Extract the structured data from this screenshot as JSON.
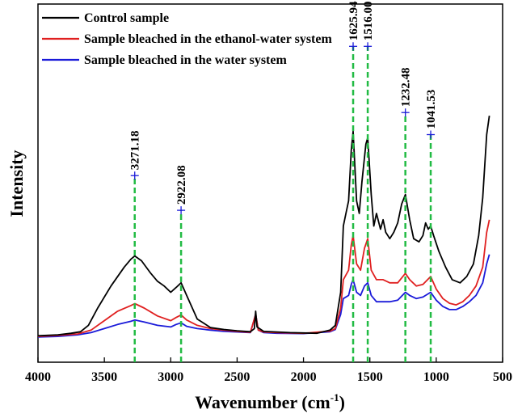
{
  "chart_data": {
    "type": "line",
    "title": "",
    "xlabel": "Wavenumber (cm",
    "xlabel_sup": "-1",
    "xlabel_close": ")",
    "ylabel": "Intensity",
    "xlim": [
      4000,
      500
    ],
    "x_reversed": true,
    "ylim": [
      0,
      100
    ],
    "y_ticks_shown": false,
    "grid": false,
    "legend_placement": "top-left",
    "x_ticks": [
      4000,
      3500,
      3000,
      2500,
      2000,
      1500,
      1000,
      500
    ],
    "x_tick_labels": [
      "4000",
      "3500",
      "3000",
      "2500",
      "2000",
      "1500",
      "1000",
      "500"
    ],
    "series": [
      {
        "name": "Control sample",
        "color": "#000000",
        "points": [
          [
            4000,
            1.2
          ],
          [
            3850,
            1.5
          ],
          [
            3750,
            2.0
          ],
          [
            3680,
            2.5
          ],
          [
            3620,
            4.5
          ],
          [
            3550,
            10
          ],
          [
            3450,
            17
          ],
          [
            3350,
            23
          ],
          [
            3300,
            25.5
          ],
          [
            3271,
            26.5
          ],
          [
            3220,
            25
          ],
          [
            3150,
            21
          ],
          [
            3100,
            18.5
          ],
          [
            3050,
            17
          ],
          [
            3000,
            15
          ],
          [
            2960,
            16.5
          ],
          [
            2922,
            18
          ],
          [
            2880,
            14
          ],
          [
            2800,
            6.5
          ],
          [
            2700,
            3.8
          ],
          [
            2600,
            3.2
          ],
          [
            2500,
            2.8
          ],
          [
            2400,
            2.5
          ],
          [
            2370,
            3.5
          ],
          [
            2360,
            9
          ],
          [
            2350,
            4
          ],
          [
            2300,
            2.6
          ],
          [
            2200,
            2.4
          ],
          [
            2100,
            2.2
          ],
          [
            2000,
            2.1
          ],
          [
            1900,
            2.0
          ],
          [
            1800,
            3.0
          ],
          [
            1760,
            4.5
          ],
          [
            1720,
            15
          ],
          [
            1700,
            36
          ],
          [
            1680,
            40
          ],
          [
            1660,
            44
          ],
          [
            1640,
            60
          ],
          [
            1626,
            66
          ],
          [
            1600,
            44
          ],
          [
            1580,
            40
          ],
          [
            1560,
            50
          ],
          [
            1530,
            62
          ],
          [
            1516,
            64
          ],
          [
            1490,
            46
          ],
          [
            1470,
            36
          ],
          [
            1450,
            40
          ],
          [
            1420,
            35
          ],
          [
            1400,
            38
          ],
          [
            1380,
            34
          ],
          [
            1350,
            32
          ],
          [
            1320,
            34
          ],
          [
            1290,
            37
          ],
          [
            1260,
            43
          ],
          [
            1232,
            46
          ],
          [
            1200,
            38
          ],
          [
            1170,
            32
          ],
          [
            1130,
            31
          ],
          [
            1100,
            33
          ],
          [
            1080,
            37
          ],
          [
            1060,
            35
          ],
          [
            1042,
            36
          ],
          [
            1020,
            33
          ],
          [
            980,
            28
          ],
          [
            930,
            23
          ],
          [
            880,
            19
          ],
          [
            820,
            18
          ],
          [
            770,
            20
          ],
          [
            720,
            24
          ],
          [
            680,
            33
          ],
          [
            650,
            45
          ],
          [
            620,
            65
          ],
          [
            600,
            71
          ]
        ]
      },
      {
        "name": "Sample bleached in the ethanol-water system",
        "color": "#e02020",
        "points": [
          [
            4000,
            1.0
          ],
          [
            3850,
            1.3
          ],
          [
            3700,
            1.8
          ],
          [
            3600,
            3.0
          ],
          [
            3500,
            6
          ],
          [
            3400,
            9
          ],
          [
            3300,
            10.8
          ],
          [
            3271,
            11.4
          ],
          [
            3200,
            10
          ],
          [
            3100,
            7.5
          ],
          [
            3000,
            6
          ],
          [
            2960,
            7
          ],
          [
            2922,
            7.8
          ],
          [
            2880,
            6.2
          ],
          [
            2800,
            4.5
          ],
          [
            2700,
            3.5
          ],
          [
            2600,
            3.0
          ],
          [
            2500,
            2.6
          ],
          [
            2400,
            2.3
          ],
          [
            2360,
            8
          ],
          [
            2340,
            3
          ],
          [
            2300,
            2.4
          ],
          [
            2200,
            2.2
          ],
          [
            2000,
            2.0
          ],
          [
            1800,
            2.7
          ],
          [
            1760,
            3.5
          ],
          [
            1720,
            10
          ],
          [
            1700,
            19
          ],
          [
            1660,
            22
          ],
          [
            1640,
            30
          ],
          [
            1626,
            33
          ],
          [
            1600,
            24
          ],
          [
            1570,
            22
          ],
          [
            1540,
            29
          ],
          [
            1516,
            32
          ],
          [
            1490,
            22
          ],
          [
            1450,
            19
          ],
          [
            1400,
            19
          ],
          [
            1350,
            18
          ],
          [
            1290,
            18
          ],
          [
            1232,
            21
          ],
          [
            1200,
            19
          ],
          [
            1150,
            17
          ],
          [
            1100,
            17.5
          ],
          [
            1042,
            20
          ],
          [
            1000,
            16
          ],
          [
            950,
            13
          ],
          [
            900,
            11.5
          ],
          [
            850,
            11
          ],
          [
            800,
            12
          ],
          [
            750,
            14
          ],
          [
            700,
            17
          ],
          [
            650,
            23
          ],
          [
            620,
            34
          ],
          [
            600,
            38
          ]
        ]
      },
      {
        "name": "Sample bleached in the water system",
        "color": "#1a1ad9",
        "points": [
          [
            4000,
            0.8
          ],
          [
            3850,
            1.0
          ],
          [
            3700,
            1.5
          ],
          [
            3600,
            2.2
          ],
          [
            3500,
            3.5
          ],
          [
            3400,
            4.8
          ],
          [
            3300,
            5.8
          ],
          [
            3271,
            6.2
          ],
          [
            3200,
            5.6
          ],
          [
            3100,
            4.5
          ],
          [
            3000,
            4.0
          ],
          [
            2960,
            4.8
          ],
          [
            2922,
            5.3
          ],
          [
            2880,
            4.2
          ],
          [
            2800,
            3.5
          ],
          [
            2700,
            3.0
          ],
          [
            2600,
            2.6
          ],
          [
            2500,
            2.4
          ],
          [
            2400,
            2.2
          ],
          [
            2360,
            8
          ],
          [
            2340,
            3
          ],
          [
            2300,
            2.2
          ],
          [
            2200,
            2.0
          ],
          [
            2000,
            1.9
          ],
          [
            1800,
            2.5
          ],
          [
            1760,
            3.2
          ],
          [
            1720,
            8
          ],
          [
            1700,
            13
          ],
          [
            1660,
            14
          ],
          [
            1640,
            17.5
          ],
          [
            1626,
            19
          ],
          [
            1600,
            15
          ],
          [
            1570,
            14
          ],
          [
            1540,
            17
          ],
          [
            1516,
            18
          ],
          [
            1490,
            14
          ],
          [
            1450,
            12
          ],
          [
            1400,
            12
          ],
          [
            1350,
            12
          ],
          [
            1290,
            12.5
          ],
          [
            1232,
            15
          ],
          [
            1200,
            14
          ],
          [
            1150,
            13
          ],
          [
            1100,
            13.5
          ],
          [
            1042,
            15
          ],
          [
            1000,
            12.5
          ],
          [
            950,
            10.5
          ],
          [
            900,
            9.5
          ],
          [
            850,
            9.5
          ],
          [
            800,
            10.5
          ],
          [
            750,
            12
          ],
          [
            700,
            14
          ],
          [
            650,
            18
          ],
          [
            620,
            24
          ],
          [
            600,
            27
          ]
        ]
      }
    ],
    "annotations": [
      {
        "label": "3271.18",
        "x": 3271.18,
        "y_top": 52
      },
      {
        "label": "2922.08",
        "x": 2922.08,
        "y_top": 41
      },
      {
        "label": "1625.94",
        "x": 1625.94,
        "y_top": 93
      },
      {
        "label": "1516.00",
        "x": 1516.0,
        "y_top": 93
      },
      {
        "label": "1232.48",
        "x": 1232.48,
        "y_top": 72
      },
      {
        "label": "1041.53",
        "x": 1041.53,
        "y_top": 65
      }
    ],
    "annotation_line_color": "#22bb44",
    "annotation_marker_color": "#1a1ad9"
  }
}
